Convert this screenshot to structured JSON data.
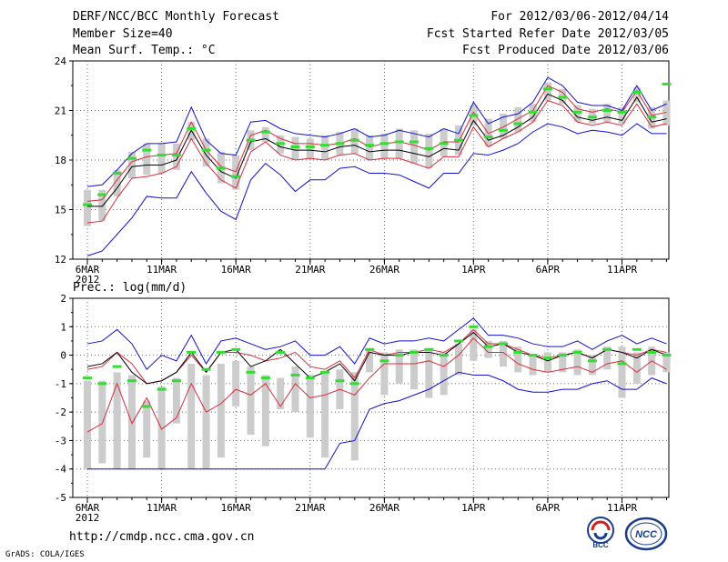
{
  "header": {
    "title": "DERF/NCC/BCC Monthly Forecast",
    "member": "Member Size=40",
    "variable": "Mean Surf. Temp.: °C",
    "period": "For 2012/03/06-2012/04/14",
    "refer": "Fcst Started Refer Date 2012/03/05",
    "produced": "Fcst Produced Date 2012/03/06"
  },
  "footer": {
    "url": "http://cmdp.ncc.cma.gov.cn",
    "grads": "GrADS: COLA/IGES",
    "logo1_text": "BCC",
    "logo2_text": "NCC"
  },
  "colors": {
    "mean": "#000000",
    "spread": "#dc2b3c",
    "range": "#1010d0",
    "box": "#cccccc",
    "obs": "#33dd33"
  },
  "chart_data": [
    {
      "type": "line",
      "title": "Mean Surf. Temp.: °C",
      "xlabel": "",
      "ylabel": "",
      "ylim": [
        12,
        24
      ],
      "yticks": [
        12,
        15,
        18,
        21,
        24
      ],
      "xticks": [
        {
          "day": 0,
          "label": "6MAR",
          "label2": "2012"
        },
        {
          "day": 5,
          "label": "11MAR"
        },
        {
          "day": 10,
          "label": "16MAR"
        },
        {
          "day": 15,
          "label": "21MAR"
        },
        {
          "day": 20,
          "label": "26MAR"
        },
        {
          "day": 26,
          "label": "1APR"
        },
        {
          "day": 31,
          "label": "6APR"
        },
        {
          "day": 36,
          "label": "11APR"
        }
      ],
      "x": [
        0,
        1,
        2,
        3,
        4,
        5,
        6,
        7,
        8,
        9,
        10,
        11,
        12,
        13,
        14,
        15,
        16,
        17,
        18,
        19,
        20,
        21,
        22,
        23,
        24,
        25,
        26,
        27,
        28,
        29,
        30,
        31,
        32,
        33,
        34,
        35,
        36,
        37,
        38,
        39
      ],
      "series": [
        {
          "name": "max",
          "values": [
            16.4,
            16.5,
            17.4,
            18.4,
            19.0,
            19.0,
            19.1,
            21.2,
            19.2,
            18.4,
            18.3,
            20.3,
            20.4,
            19.9,
            19.6,
            19.5,
            19.4,
            19.6,
            19.9,
            19.4,
            19.5,
            19.8,
            19.6,
            19.4,
            19.9,
            19.6,
            21.5,
            20.2,
            20.6,
            20.8,
            21.5,
            23.0,
            22.5,
            21.5,
            21.3,
            21.3,
            21.0,
            22.5,
            21.0,
            21.4
          ]
        },
        {
          "name": "upper",
          "values": [
            15.5,
            15.6,
            16.8,
            17.9,
            18.2,
            18.3,
            18.4,
            20.3,
            18.6,
            17.6,
            17.3,
            19.5,
            19.8,
            19.3,
            19.0,
            19.0,
            18.9,
            19.0,
            19.3,
            18.8,
            19.0,
            19.1,
            18.9,
            18.6,
            19.1,
            19.1,
            20.9,
            19.6,
            20.0,
            20.5,
            21.0,
            22.5,
            22.1,
            21.1,
            20.9,
            21.1,
            20.9,
            22.2,
            20.7,
            20.9
          ]
        },
        {
          "name": "mean",
          "values": [
            15.2,
            15.2,
            16.3,
            17.6,
            17.7,
            17.7,
            18.0,
            19.8,
            18.3,
            17.3,
            16.9,
            19.1,
            19.3,
            18.8,
            18.6,
            18.6,
            18.5,
            18.8,
            18.9,
            18.5,
            18.6,
            18.6,
            18.4,
            18.2,
            18.7,
            18.6,
            20.4,
            19.2,
            19.5,
            20.0,
            20.6,
            22.0,
            21.6,
            20.6,
            20.4,
            20.6,
            20.4,
            21.8,
            20.3,
            20.5
          ]
        },
        {
          "name": "lower",
          "values": [
            14.2,
            14.3,
            15.7,
            16.9,
            17.0,
            17.2,
            17.6,
            19.3,
            17.8,
            16.8,
            16.3,
            18.5,
            19.1,
            18.3,
            18.0,
            18.1,
            18.0,
            18.3,
            18.4,
            18.0,
            18.1,
            18.1,
            17.8,
            17.5,
            18.2,
            18.2,
            20.0,
            18.8,
            19.3,
            19.7,
            20.3,
            21.6,
            21.3,
            20.3,
            20.1,
            20.3,
            20.1,
            21.4,
            20.0,
            20.2
          ]
        },
        {
          "name": "min",
          "values": [
            12.2,
            12.5,
            13.5,
            14.5,
            15.8,
            15.7,
            15.7,
            17.3,
            16.0,
            14.9,
            14.4,
            16.8,
            17.8,
            17.1,
            16.1,
            16.8,
            16.8,
            17.5,
            17.6,
            17.2,
            17.2,
            17.1,
            16.7,
            16.3,
            17.2,
            17.2,
            18.4,
            18.3,
            18.6,
            19.0,
            19.7,
            20.2,
            20.0,
            19.6,
            19.8,
            19.7,
            19.5,
            20.2,
            19.6,
            19.6
          ]
        },
        {
          "name": "box_top",
          "values": [
            16.2,
            16.2,
            17.4,
            18.5,
            19.0,
            19.0,
            19.0,
            20.3,
            19.3,
            18.5,
            18.3,
            19.8,
            20.0,
            19.5,
            19.4,
            19.3,
            19.5,
            19.7,
            19.9,
            19.5,
            19.6,
            19.9,
            19.8,
            19.6,
            19.9,
            20.1,
            21.3,
            20.5,
            20.8,
            21.2,
            21.4,
            22.7,
            22.3,
            21.3,
            21.1,
            21.4,
            21.2,
            22.4,
            21.2,
            21.6
          ]
        },
        {
          "name": "box_bottom",
          "values": [
            14.0,
            14.3,
            15.8,
            16.9,
            17.1,
            17.2,
            17.4,
            19.2,
            17.6,
            16.6,
            16.2,
            18.6,
            19.1,
            18.4,
            18.0,
            18.1,
            18.0,
            18.3,
            18.4,
            18.0,
            18.1,
            18.1,
            17.8,
            17.5,
            18.2,
            18.3,
            20.1,
            18.8,
            19.3,
            19.7,
            20.3,
            21.6,
            21.4,
            20.3,
            20.2,
            20.3,
            20.2,
            21.5,
            19.9,
            20.1
          ]
        },
        {
          "name": "observed",
          "values": [
            15.3,
            15.9,
            17.2,
            18.1,
            18.6,
            18.3,
            18.3,
            19.9,
            18.6,
            17.5,
            17.0,
            19.2,
            19.7,
            19.0,
            18.8,
            18.8,
            18.9,
            19.0,
            19.2,
            18.9,
            19.0,
            19.1,
            19.1,
            18.7,
            19.0,
            19.2,
            20.7,
            19.4,
            19.8,
            20.2,
            20.9,
            22.3,
            21.8,
            20.9,
            20.6,
            21.0,
            20.9,
            22.1,
            20.6,
            22.6
          ]
        }
      ]
    },
    {
      "type": "line",
      "title": "Prec.: log(mm/d)",
      "xlabel": "",
      "ylabel": "",
      "ylim": [
        -5,
        2
      ],
      "yticks": [
        -5,
        -4,
        -3,
        -2,
        -1,
        0,
        1,
        2
      ],
      "xticks": [
        {
          "day": 0,
          "label": "6MAR",
          "label2": "2012"
        },
        {
          "day": 5,
          "label": "11MAR"
        },
        {
          "day": 10,
          "label": "16MAR"
        },
        {
          "day": 15,
          "label": "21MAR"
        },
        {
          "day": 20,
          "label": "26MAR"
        },
        {
          "day": 26,
          "label": "1APR"
        },
        {
          "day": 31,
          "label": "6APR"
        },
        {
          "day": 36,
          "label": "11APR"
        }
      ],
      "x": [
        0,
        1,
        2,
        3,
        4,
        5,
        6,
        7,
        8,
        9,
        10,
        11,
        12,
        13,
        14,
        15,
        16,
        17,
        18,
        19,
        20,
        21,
        22,
        23,
        24,
        25,
        26,
        27,
        28,
        29,
        30,
        31,
        32,
        33,
        34,
        35,
        36,
        37,
        38,
        39
      ],
      "series": [
        {
          "name": "max",
          "values": [
            0.4,
            0.5,
            0.9,
            0.4,
            -0.5,
            0.0,
            -0.2,
            0.7,
            -0.3,
            0.5,
            0.6,
            0.4,
            0.2,
            0.3,
            0.5,
            0.0,
            0.0,
            0.3,
            -0.3,
            0.6,
            0.4,
            0.5,
            0.5,
            0.6,
            0.5,
            0.9,
            1.3,
            0.7,
            0.7,
            0.6,
            0.4,
            0.3,
            0.3,
            0.5,
            0.2,
            0.5,
            0.7,
            0.4,
            0.6,
            0.4
          ]
        },
        {
          "name": "upper",
          "values": [
            -0.5,
            -0.4,
            0.1,
            -0.3,
            -1.0,
            -0.9,
            -0.6,
            0.0,
            -0.6,
            0.1,
            0.1,
            0.0,
            -0.2,
            -0.1,
            0.1,
            -0.4,
            -0.5,
            -0.2,
            -0.8,
            0.2,
            0.0,
            0.1,
            0.1,
            0.2,
            0.1,
            0.4,
            0.9,
            0.4,
            0.4,
            0.2,
            0.0,
            -0.1,
            0.0,
            0.1,
            -0.1,
            0.2,
            0.1,
            0.0,
            0.2,
            0.1
          ]
        },
        {
          "name": "mean",
          "values": [
            -0.4,
            -0.3,
            0.1,
            -0.6,
            -1.0,
            -0.9,
            -0.6,
            0.1,
            -0.6,
            0.1,
            0.2,
            -0.4,
            -0.2,
            0.2,
            -0.3,
            -0.8,
            -0.6,
            -0.3,
            -0.9,
            0.1,
            0.0,
            0.0,
            0.1,
            0.1,
            0.0,
            0.4,
            0.8,
            0.3,
            0.4,
            0.1,
            0.0,
            -0.2,
            0.0,
            0.1,
            -0.1,
            0.2,
            0.1,
            -0.1,
            0.2,
            0.0
          ]
        },
        {
          "name": "lower",
          "values": [
            -2.7,
            -2.4,
            -1.0,
            -2.4,
            -1.5,
            -2.6,
            -2.2,
            -1.0,
            -2.0,
            -1.7,
            -1.2,
            -1.4,
            -1.0,
            -1.8,
            -1.0,
            -1.5,
            -1.4,
            -1.2,
            -1.4,
            -0.8,
            -0.3,
            -0.3,
            -0.3,
            -0.2,
            -0.4,
            0.0,
            0.6,
            0.1,
            0.1,
            -0.3,
            -0.5,
            -0.6,
            -0.5,
            -0.4,
            -0.6,
            -0.3,
            -0.2,
            -0.6,
            -0.2,
            -0.5
          ]
        },
        {
          "name": "min",
          "values": [
            -4.0,
            -4.0,
            -4.0,
            -4.0,
            -4.0,
            -4.0,
            -4.0,
            -4.0,
            -4.0,
            -4.0,
            -4.0,
            -4.0,
            -4.0,
            -4.0,
            -4.0,
            -4.0,
            -4.0,
            -3.1,
            -3.0,
            -1.9,
            -1.7,
            -1.6,
            -1.4,
            -1.2,
            -0.9,
            -0.6,
            -0.7,
            -0.7,
            -0.9,
            -1.2,
            -1.3,
            -1.3,
            -1.2,
            -1.2,
            -1.0,
            -0.9,
            -1.2,
            -1.2,
            -0.8,
            -1.0
          ]
        },
        {
          "name": "box_top",
          "values": [
            -0.9,
            -0.9,
            -0.6,
            -0.7,
            -1.6,
            -1.1,
            -0.8,
            -0.3,
            -0.7,
            -0.3,
            -0.2,
            -0.4,
            -0.7,
            -0.8,
            -0.4,
            -0.7,
            -0.6,
            -0.5,
            -0.6,
            0.2,
            0.1,
            0.2,
            0.2,
            0.2,
            0.1,
            0.4,
            0.9,
            0.5,
            0.5,
            0.3,
            0.0,
            0.1,
            0.1,
            0.2,
            0.0,
            0.3,
            0.3,
            0.1,
            0.3,
            0.1
          ]
        },
        {
          "name": "box_bottom",
          "values": [
            -4.0,
            -3.8,
            -4.0,
            -4.0,
            -3.6,
            -4.0,
            -2.4,
            -4.0,
            -4.0,
            -3.6,
            -1.8,
            -2.8,
            -3.2,
            -1.9,
            -2.0,
            -2.9,
            -3.6,
            -1.9,
            -3.7,
            -0.6,
            -1.4,
            -1.0,
            -1.2,
            -1.5,
            -1.4,
            -0.7,
            -0.2,
            -0.1,
            -0.4,
            -0.6,
            -0.7,
            -0.6,
            -0.6,
            -0.7,
            -0.7,
            -0.5,
            -1.5,
            -1.0,
            -0.7,
            -0.6
          ]
        },
        {
          "name": "observed",
          "values": [
            -0.8,
            -1.0,
            -0.4,
            -0.9,
            -1.8,
            -1.2,
            -0.9,
            0.1,
            -0.5,
            0.1,
            0.2,
            -0.6,
            -0.8,
            0.1,
            -0.7,
            -0.8,
            -0.6,
            -0.9,
            -1.0,
            0.2,
            -0.2,
            0.0,
            0.1,
            0.2,
            0.0,
            0.5,
            1.0,
            0.3,
            0.4,
            0.1,
            0.0,
            -0.1,
            0.0,
            0.1,
            -0.2,
            0.2,
            -0.3,
            0.2,
            0.1,
            0.0
          ]
        }
      ]
    }
  ]
}
